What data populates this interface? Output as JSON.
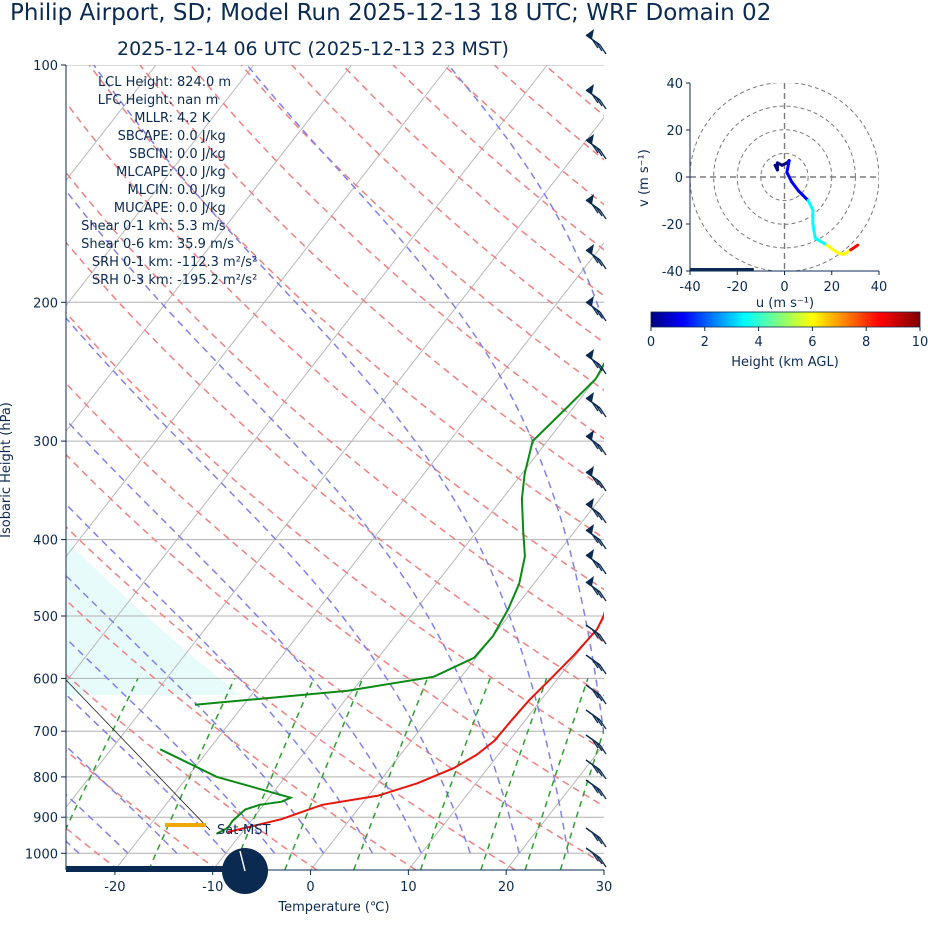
{
  "title": "Philip Airport, SD; Model Run 2025-12-13 18 UTC; WRF Domain 02",
  "subtitle": "2025-12-14 06 UTC  (2025-12-13 23 MST)",
  "colors": {
    "text": "#0b2a52",
    "temperature": "#e8140c",
    "dewpoint": "#0a8a14",
    "dry_adiabat": "#f08080",
    "moist_adiabat": "#8080f0",
    "mixing_ratio": "#2ca02c",
    "cape_shade": "#e8fbfb",
    "barb": "#0b2a52",
    "sat_marker": "#f0a800"
  },
  "chart_data": [
    {
      "type": "line",
      "name": "skew-t",
      "xlabel": "Temperature (℃)",
      "ylabel": "Isobaric Height (hPa)",
      "xlim": [
        -25,
        30
      ],
      "ylim": [
        1050,
        100
      ],
      "y_scale": "log",
      "x_ticks": [
        -20,
        -10,
        0,
        10,
        20,
        30
      ],
      "y_ticks": [
        100,
        200,
        300,
        400,
        500,
        600,
        700,
        800,
        900,
        1000
      ],
      "grid": true,
      "annotations": [
        {
          "label": "LCL Height:",
          "value": "824.0 m"
        },
        {
          "label": "LFC Height:",
          "value": "nan m"
        },
        {
          "label": "MLLR:",
          "value": "4.2 K"
        },
        {
          "label": "SBCAPE:",
          "value": "0.0 J/kg"
        },
        {
          "label": "SBCIN:",
          "value": "0.0 J/kg"
        },
        {
          "label": "MLCAPE:",
          "value": "0.0 J/kg"
        },
        {
          "label": "MLCIN:",
          "value": "0.0 J/kg"
        },
        {
          "label": "MUCAPE:",
          "value": "0.0 J/kg"
        },
        {
          "label": "Shear 0-1 km:",
          "value": "5.3 m/s"
        },
        {
          "label": "Shear 0-6 km:",
          "value": "35.9 m/s"
        },
        {
          "label": "SRH 0-1 km:",
          "value": "-112.3 m²/s²"
        },
        {
          "label": "SRH 0-3 km:",
          "value": "-195.2 m²/s²"
        }
      ],
      "sat_label": "Sat-MST",
      "series": [
        {
          "key": "temperature",
          "points": [
            [
              -11.5,
              940
            ],
            [
              -7,
              905
            ],
            [
              -4,
              868
            ],
            [
              1,
              845
            ],
            [
              4,
              815
            ],
            [
              6.5,
              780
            ],
            [
              7.8,
              750
            ],
            [
              8.5,
              720
            ],
            [
              8.6,
              680
            ],
            [
              8.8,
              640
            ],
            [
              9.3,
              600
            ],
            [
              9.8,
              560
            ],
            [
              10.1,
              520
            ],
            [
              9.7,
              500
            ],
            [
              9,
              480
            ],
            [
              8.1,
              450
            ],
            [
              6.9,
              415
            ],
            [
              5.7,
              385
            ],
            [
              4.3,
              355
            ],
            [
              2.8,
              325
            ],
            [
              1.4,
              297
            ],
            [
              0,
              272
            ],
            [
              -1.2,
              250
            ],
            [
              -2.1,
              228
            ],
            [
              -2.5,
              210
            ],
            [
              -2.6,
              192
            ],
            [
              -2.2,
              180
            ],
            [
              -1.2,
              168
            ],
            [
              0,
              156
            ],
            [
              3.1,
              140
            ],
            [
              6.3,
              126
            ],
            [
              10.5,
              118
            ],
            [
              17.2,
              107
            ],
            [
              23,
              100
            ]
          ]
        },
        {
          "key": "dewpoint",
          "points": [
            [
              -12.5,
              945
            ],
            [
              -11.8,
              928
            ],
            [
              -11.9,
              910
            ],
            [
              -11.5,
              880
            ],
            [
              -10.4,
              868
            ],
            [
              -8.4,
              860
            ],
            [
              -7.8,
              850
            ],
            [
              -17,
              800
            ],
            [
              -25,
              738
            ]
          ]
        },
        {
          "key": "dewpoint",
          "points": [
            [
              -25,
              648
            ],
            [
              -10.5,
              622
            ],
            [
              -2.8,
              597
            ],
            [
              -0.2,
              565
            ],
            [
              0,
              530
            ],
            [
              -0.6,
              490
            ],
            [
              -1.5,
              455
            ],
            [
              -3.1,
              420
            ],
            [
              -5.3,
              390
            ],
            [
              -8,
              355
            ],
            [
              -9.7,
              330
            ],
            [
              -11.5,
              300
            ],
            [
              -10.6,
              270
            ],
            [
              -10,
              250
            ],
            [
              -10.5,
              235
            ],
            [
              -11.2,
              215
            ],
            [
              -10.1,
              195
            ],
            [
              -7.7,
              172
            ],
            [
              -7.4,
              160
            ],
            [
              -8.5,
              148
            ],
            [
              -9.4,
              140
            ],
            [
              -8.3,
              132
            ],
            [
              -6.8,
              121
            ],
            [
              -2,
              105
            ],
            [
              1.8,
              100
            ]
          ]
        }
      ]
    },
    {
      "type": "line",
      "name": "hodograph",
      "xlabel": "u (m s⁻¹)",
      "ylabel": "v (m s⁻¹)",
      "xlim": [
        -40,
        40
      ],
      "ylim": [
        -40,
        40
      ],
      "x_ticks": [
        -40,
        -20,
        0,
        20,
        40
      ],
      "y_ticks": [
        40,
        20,
        0,
        -20,
        -40
      ],
      "rings": [
        10,
        20,
        30,
        40
      ],
      "colorbar": {
        "label": "Height (km AGL)",
        "min": 0,
        "max": 10,
        "ticks": [
          0,
          2,
          4,
          6,
          8,
          10
        ]
      },
      "series": [
        {
          "name": "",
          "points": [
            [
              -4,
              5,
              0
            ],
            [
              -3,
              3,
              0.2
            ],
            [
              -3,
              6,
              0.4
            ],
            [
              -1,
              5,
              0.6
            ],
            [
              1,
              6,
              0.8
            ],
            [
              2,
              7,
              1
            ],
            [
              1,
              2,
              1.6
            ],
            [
              3,
              -2,
              2.2
            ],
            [
              6,
              -6,
              2.8
            ],
            [
              10,
              -10,
              3.4
            ],
            [
              12,
              -14,
              3.8
            ],
            [
              12,
              -20,
              4.2
            ],
            [
              13,
              -26,
              4.8
            ],
            [
              18,
              -29,
              5.5
            ],
            [
              22,
              -32,
              6.5
            ],
            [
              25,
              -33,
              7.5
            ],
            [
              28,
              -31,
              8.5
            ],
            [
              31,
              -29,
              9.5
            ]
          ]
        }
      ]
    }
  ]
}
